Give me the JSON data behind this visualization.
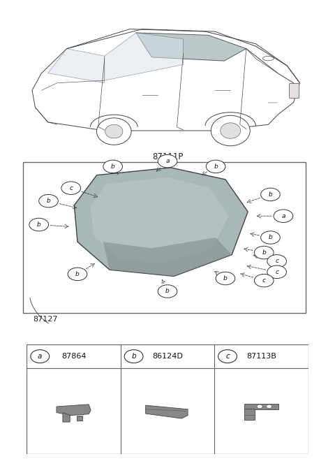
{
  "bg_color": "#ffffff",
  "part_number_main": "87111P",
  "part_number_side": "87127",
  "parts": [
    {
      "label": "a",
      "code": "87864"
    },
    {
      "label": "b",
      "code": "86124D"
    },
    {
      "label": "c",
      "code": "87113B"
    }
  ],
  "glass_color": "#a8b8b8",
  "glass_edge_color": "#444444",
  "line_color": "#444444",
  "label_circle_color": "#ffffff",
  "label_circle_edge": "#444444",
  "labels_info": [
    [
      "a",
      5.0,
      7.55,
      4.6,
      7.0,
      "top-a"
    ],
    [
      "b",
      3.3,
      7.3,
      3.5,
      6.85,
      "top-left-b"
    ],
    [
      "b",
      6.5,
      7.3,
      6.0,
      6.85,
      "top-right-b"
    ],
    [
      "c",
      2.0,
      6.3,
      2.9,
      5.85,
      "left-c"
    ],
    [
      "b",
      1.3,
      5.7,
      2.25,
      5.35,
      "left-b-upper"
    ],
    [
      "b",
      1.0,
      4.6,
      2.0,
      4.5,
      "left-b-lower"
    ],
    [
      "b",
      8.2,
      6.0,
      7.4,
      5.6,
      "right-b-upper"
    ],
    [
      "a",
      8.6,
      5.0,
      7.7,
      5.0,
      "right-a"
    ],
    [
      "b",
      8.2,
      4.0,
      7.5,
      4.2,
      "right-b-lower"
    ],
    [
      "b",
      8.0,
      3.3,
      7.3,
      3.5,
      "right-b-bottom"
    ],
    [
      "c",
      8.4,
      2.9,
      7.6,
      3.2,
      "right-c-upper"
    ],
    [
      "c",
      8.4,
      2.4,
      7.4,
      2.7,
      "right-c-mid"
    ],
    [
      "c",
      8.0,
      2.0,
      7.2,
      2.35,
      "right-c-lower"
    ],
    [
      "b",
      2.2,
      2.3,
      2.8,
      2.85,
      "bottom-left-b"
    ],
    [
      "b",
      5.0,
      1.5,
      4.8,
      2.15,
      "bottom-b"
    ],
    [
      "b",
      6.8,
      2.1,
      6.4,
      2.5,
      "bottom-right-b"
    ]
  ]
}
